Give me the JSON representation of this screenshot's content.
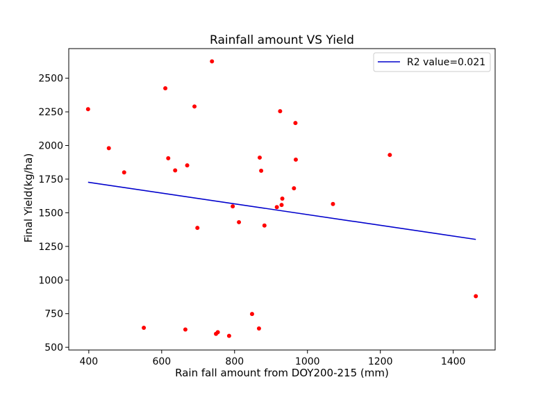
{
  "chart_data": {
    "type": "scatter",
    "title": "Rainfall amount VS Yield",
    "xlabel": "Rain fall amount from DOY200-215 (mm)",
    "ylabel": "Final Yield(kg/ha)",
    "xlim": [
      345,
      1515
    ],
    "ylim": [
      480,
      2720
    ],
    "xticks": [
      400,
      600,
      800,
      1000,
      1200,
      1400
    ],
    "yticks": [
      500,
      750,
      1000,
      1250,
      1500,
      1750,
      2000,
      2250,
      2500
    ],
    "legend": {
      "position": "top-right",
      "entries": [
        "R2 value=0.021"
      ]
    },
    "grid": false,
    "points_color": "#ff0000",
    "line_color": "#0000cc",
    "points": [
      {
        "x": 398,
        "y": 2270
      },
      {
        "x": 455,
        "y": 1980
      },
      {
        "x": 497,
        "y": 1800
      },
      {
        "x": 551,
        "y": 645
      },
      {
        "x": 610,
        "y": 2425
      },
      {
        "x": 618,
        "y": 1905
      },
      {
        "x": 637,
        "y": 1815
      },
      {
        "x": 665,
        "y": 632
      },
      {
        "x": 670,
        "y": 1852
      },
      {
        "x": 690,
        "y": 2290
      },
      {
        "x": 698,
        "y": 1388
      },
      {
        "x": 738,
        "y": 2625
      },
      {
        "x": 749,
        "y": 600
      },
      {
        "x": 754,
        "y": 612
      },
      {
        "x": 785,
        "y": 585
      },
      {
        "x": 795,
        "y": 1548
      },
      {
        "x": 812,
        "y": 1430
      },
      {
        "x": 848,
        "y": 748
      },
      {
        "x": 867,
        "y": 640
      },
      {
        "x": 869,
        "y": 1910
      },
      {
        "x": 873,
        "y": 1812
      },
      {
        "x": 882,
        "y": 1405
      },
      {
        "x": 916,
        "y": 1542
      },
      {
        "x": 925,
        "y": 2255
      },
      {
        "x": 929,
        "y": 1558
      },
      {
        "x": 931,
        "y": 1605
      },
      {
        "x": 963,
        "y": 1682
      },
      {
        "x": 967,
        "y": 2167
      },
      {
        "x": 968,
        "y": 1895
      },
      {
        "x": 1070,
        "y": 1565
      },
      {
        "x": 1226,
        "y": 1930
      },
      {
        "x": 1462,
        "y": 880
      }
    ],
    "fit_line": {
      "name": "R2 value=0.021",
      "x": [
        398,
        1462
      ],
      "y": [
        1727,
        1302
      ]
    }
  }
}
